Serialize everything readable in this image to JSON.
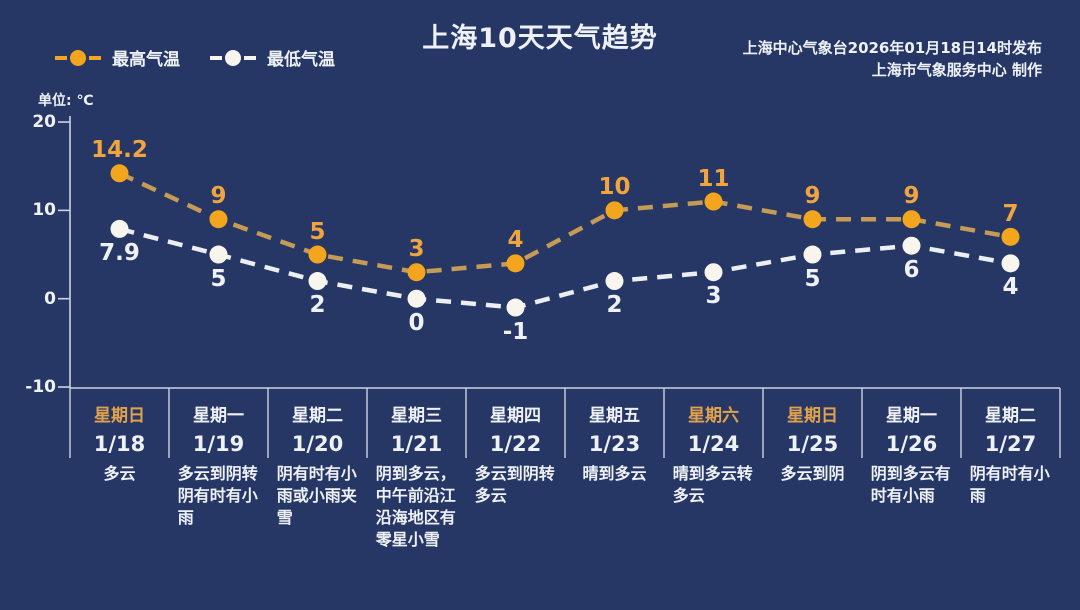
{
  "header": {
    "title": "上海10天天气趋势",
    "issue_line1": "上海中心气象台2026年01月18日14时发布",
    "issue_line2": "上海市气象服务中心  制作"
  },
  "legend": {
    "high": "最高气温",
    "low": "最低气温"
  },
  "unit_label": "单位: ℃",
  "colors": {
    "background": "#263765",
    "axis": "#ccd4e2",
    "text": "#eef1f6",
    "high_marker": "#f3a51d",
    "high_line": "#c59b55",
    "high_label": "#efa440",
    "low_marker": "#f8f5ee",
    "low_line": "#eceff2",
    "low_label": "#eef1f6",
    "weekend": "#e2a24b"
  },
  "chart_data": {
    "type": "line",
    "title": "上海10天天气趋势",
    "x": [
      "1/18",
      "1/19",
      "1/20",
      "1/21",
      "1/22",
      "1/23",
      "1/24",
      "1/25",
      "1/26",
      "1/27"
    ],
    "series": [
      {
        "name": "最高气温",
        "values": [
          14.2,
          9,
          5,
          3,
          4,
          10,
          11,
          9,
          9,
          7
        ]
      },
      {
        "name": "最低气温",
        "values": [
          7.9,
          5,
          2,
          0,
          -1,
          2,
          3,
          5,
          6,
          4
        ]
      }
    ],
    "unit": "℃",
    "yticks": [
      20,
      10,
      0,
      -10
    ],
    "ylim": [
      -13,
      21.5
    ],
    "grid": false,
    "legend_position": "top-left",
    "line_style": "dashed"
  },
  "days": [
    {
      "weekday": "星期日",
      "date": "1/18",
      "weather": "多云",
      "weekend": true
    },
    {
      "weekday": "星期一",
      "date": "1/19",
      "weather": "多云到阴转阴有时有小雨",
      "weekend": false
    },
    {
      "weekday": "星期二",
      "date": "1/20",
      "weather": "阴有时有小雨或小雨夹雪",
      "weekend": false
    },
    {
      "weekday": "星期三",
      "date": "1/21",
      "weather": "阴到多云，中午前沿江沿海地区有零星小雪",
      "weekend": false
    },
    {
      "weekday": "星期四",
      "date": "1/22",
      "weather": "多云到阴转多云",
      "weekend": false
    },
    {
      "weekday": "星期五",
      "date": "1/23",
      "weather": "晴到多云",
      "weekend": false
    },
    {
      "weekday": "星期六",
      "date": "1/24",
      "weather": "晴到多云转多云",
      "weekend": true
    },
    {
      "weekday": "星期日",
      "date": "1/25",
      "weather": "多云到阴",
      "weekend": true
    },
    {
      "weekday": "星期一",
      "date": "1/26",
      "weather": "阴到多云有时有小雨",
      "weekend": false
    },
    {
      "weekday": "星期二",
      "date": "1/27",
      "weather": "阴有时有小雨",
      "weekend": false
    }
  ]
}
